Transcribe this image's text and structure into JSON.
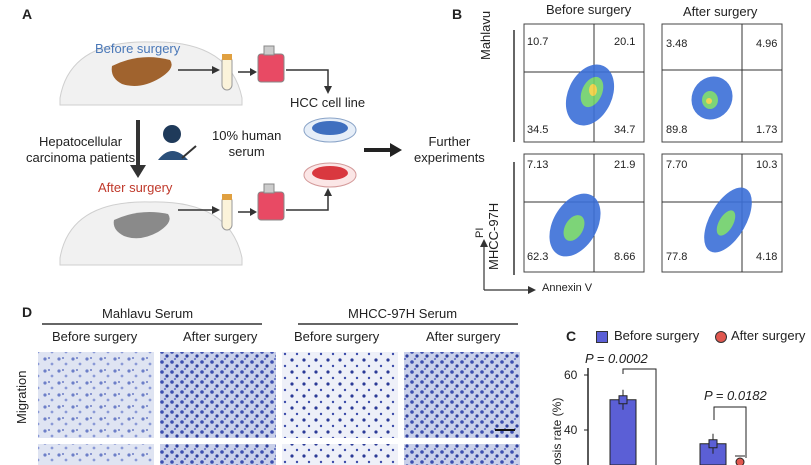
{
  "panel_a": {
    "letter": "A",
    "before_surgery": "Before surgery",
    "after_surgery": "After surgery",
    "patients_line1": "Hepatocellular",
    "patients_line2": "carcinoma patients",
    "serum_line1": "10% human",
    "serum_line2": "serum",
    "cell_line": "HCC cell line",
    "further_line1": "Further",
    "further_line2": "experiments"
  },
  "panel_b": {
    "letter": "B",
    "col_before": "Before surgery",
    "col_after": "After surgery",
    "row1": "Mahlavu",
    "row2": "MHCC-97H",
    "y_axis": "PI",
    "x_axis": "Annexin V",
    "quadrants": {
      "mahlavu_before": [
        "10.7",
        "20.1",
        "34.5",
        "34.7"
      ],
      "mahlavu_after": [
        "3.48",
        "4.96",
        "89.8",
        "1.73"
      ],
      "mhcc_before": [
        "7.13",
        "21.9",
        "62.3",
        "8.66"
      ],
      "mhcc_after": [
        "7.70",
        "10.3",
        "77.8",
        "4.18"
      ]
    }
  },
  "panel_d": {
    "letter": "D",
    "group1": "Mahlavu Serum",
    "group2": "MHCC-97H Serum",
    "sub_before": "Before surgery",
    "sub_after": "After surgery",
    "row_label": "Migration"
  },
  "panel_c": {
    "letter": "C",
    "legend_before": "Before surgery",
    "legend_after": "After surgery",
    "p1": "P = 0.0002",
    "p2": "P = 0.0182",
    "ylabel_partial": "osis rate (%)",
    "tick_60": "60",
    "tick_40": "40",
    "colors": {
      "before": "#5b5fd6",
      "after": "#e0574f"
    }
  },
  "chart_data": {
    "type": "bar",
    "title": "",
    "ylabel": "osis rate (%)",
    "ylim": [
      20,
      65
    ],
    "categories": [
      "",
      ""
    ],
    "series": [
      {
        "name": "Before surgery",
        "values": [
          51,
          35
        ]
      },
      {
        "name": "After surgery",
        "values": [
          null,
          22
        ]
      }
    ],
    "annotations": [
      "P = 0.0002",
      "P = 0.0182"
    ]
  }
}
